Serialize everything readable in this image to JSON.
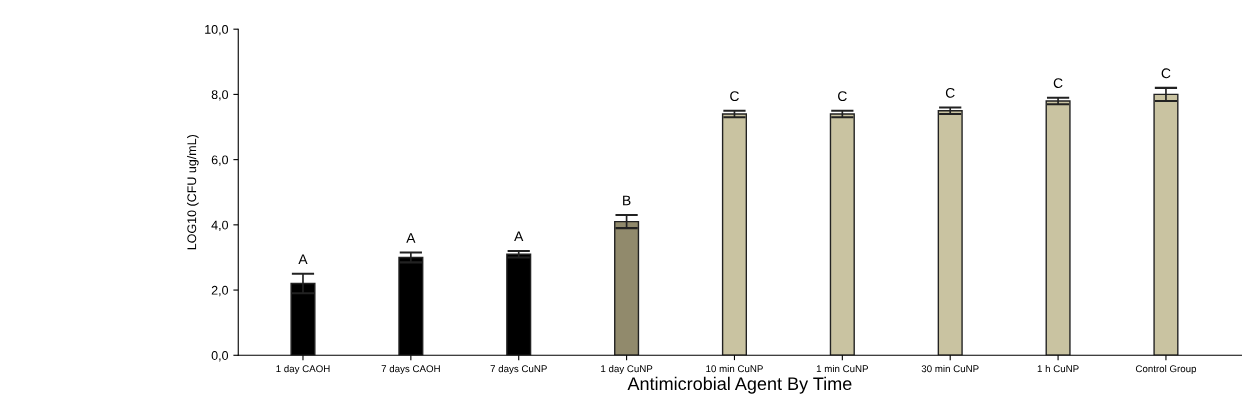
{
  "chart_data": {
    "type": "bar",
    "xlabel": "Antimicrobial Agent By Time",
    "ylabel": "LOG10 (CFU ug/mL)",
    "categories": [
      "1 day CAOH",
      "7 days CAOH",
      "7 days CuNP",
      "1 day CuNP",
      "10 min CuNP",
      "1 min CuNP",
      "30 min CuNP",
      "1 h CuNP",
      "Control Group"
    ],
    "values": [
      2.2,
      3.0,
      3.1,
      4.1,
      7.4,
      7.4,
      7.5,
      7.8,
      8.0
    ],
    "errors": [
      0.3,
      0.15,
      0.1,
      0.2,
      0.1,
      0.1,
      0.1,
      0.1,
      0.2
    ],
    "colors": [
      "#000000",
      "#000000",
      "#000000",
      "#918a6c",
      "#c9c3a1",
      "#c9c3a1",
      "#c9c3a1",
      "#c9c3a1",
      "#c9c3a1"
    ],
    "ylim": [
      0,
      10
    ],
    "yticks": [
      {
        "value": 0,
        "label": "0,0"
      },
      {
        "value": 2,
        "label": "2,0"
      },
      {
        "value": 4,
        "label": "4,0"
      },
      {
        "value": 6,
        "label": "6,0"
      },
      {
        "value": 8,
        "label": "8,0"
      },
      {
        "value": 10,
        "label": "10,0"
      }
    ],
    "annotations": [
      {
        "text": "A",
        "x": "1 day CAOH",
        "y": 2.5
      },
      {
        "text": "A",
        "x": "7 days CAOH",
        "y": 3.15
      },
      {
        "text": "A",
        "x": "7 days CuNP",
        "y": 3.2
      },
      {
        "text": "B",
        "x": "1 day CuNP",
        "y": 4.3
      },
      {
        "text": "C",
        "x": "10 min CuNP",
        "y": 7.5
      },
      {
        "text": "C",
        "x": "1 min CuNP",
        "y": 7.5
      },
      {
        "text": "C",
        "x": "30 min CuNP",
        "y": 7.6
      },
      {
        "text": "C",
        "x": "1 h CuNP",
        "y": 7.9
      },
      {
        "text": "C",
        "x": "Control Group",
        "y": 8.2
      }
    ],
    "grid": false,
    "legend": false
  }
}
